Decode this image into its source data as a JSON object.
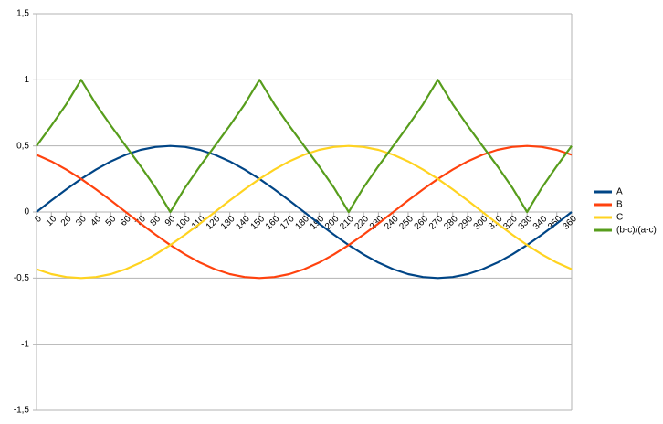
{
  "chart_data": {
    "type": "line",
    "x": [
      0,
      10,
      20,
      30,
      40,
      50,
      60,
      70,
      80,
      90,
      100,
      110,
      120,
      130,
      140,
      150,
      160,
      170,
      180,
      190,
      200,
      210,
      220,
      230,
      240,
      250,
      260,
      270,
      280,
      290,
      300,
      310,
      320,
      330,
      340,
      350,
      360
    ],
    "xlim": [
      0,
      360
    ],
    "ylim": [
      -1.5,
      1.5
    ],
    "yticks": [
      {
        "value": -1.5,
        "label": "-1,5"
      },
      -1,
      {
        "value": -0.5,
        "label": "-0,5"
      },
      0,
      {
        "value": 0.5,
        "label": "0,5"
      },
      1,
      {
        "value": 1.5,
        "label": "1,5"
      }
    ],
    "grid": true,
    "legend": "right",
    "series": [
      {
        "name": "A",
        "color": "#004586",
        "values": [
          0,
          0.087,
          0.171,
          0.25,
          0.321,
          0.383,
          0.433,
          0.47,
          0.492,
          0.5,
          0.492,
          0.47,
          0.433,
          0.383,
          0.321,
          0.25,
          0.171,
          0.087,
          0,
          -0.087,
          -0.171,
          -0.25,
          -0.321,
          -0.383,
          -0.433,
          -0.47,
          -0.492,
          -0.5,
          -0.492,
          -0.47,
          -0.433,
          -0.383,
          -0.321,
          -0.25,
          -0.171,
          -0.087,
          0
        ]
      },
      {
        "name": "B",
        "color": "#ff420e",
        "values": [
          0.433,
          0.383,
          0.321,
          0.25,
          0.171,
          0.087,
          0,
          -0.087,
          -0.171,
          -0.25,
          -0.321,
          -0.383,
          -0.433,
          -0.47,
          -0.492,
          -0.5,
          -0.492,
          -0.47,
          -0.433,
          -0.383,
          -0.321,
          -0.25,
          -0.171,
          -0.087,
          0,
          0.087,
          0.171,
          0.25,
          0.321,
          0.383,
          0.433,
          0.47,
          0.492,
          0.5,
          0.492,
          0.47,
          0.433
        ]
      },
      {
        "name": "C",
        "color": "#ffd320",
        "values": [
          -0.433,
          -0.47,
          -0.492,
          -0.5,
          -0.492,
          -0.47,
          -0.433,
          -0.383,
          -0.321,
          -0.25,
          -0.171,
          -0.087,
          0,
          0.087,
          0.171,
          0.25,
          0.321,
          0.383,
          0.433,
          0.47,
          0.492,
          0.5,
          0.492,
          0.47,
          0.433,
          0.383,
          0.321,
          0.25,
          0.171,
          0.087,
          0,
          -0.087,
          -0.171,
          -0.25,
          -0.321,
          -0.383,
          -0.433
        ]
      },
      {
        "name": "(b-c)/(a-c)",
        "color": "#579d1c",
        "values": [
          0.5,
          0.653,
          0.815,
          1,
          0.815,
          0.653,
          0.5,
          0.347,
          0.185,
          0,
          0.185,
          0.347,
          0.5,
          0.653,
          0.815,
          1,
          0.815,
          0.653,
          0.5,
          0.347,
          0.185,
          0,
          0.185,
          0.347,
          0.5,
          0.653,
          0.815,
          1,
          0.815,
          0.653,
          0.5,
          0.347,
          0.185,
          0,
          0.185,
          0.347,
          0.5
        ]
      }
    ]
  }
}
